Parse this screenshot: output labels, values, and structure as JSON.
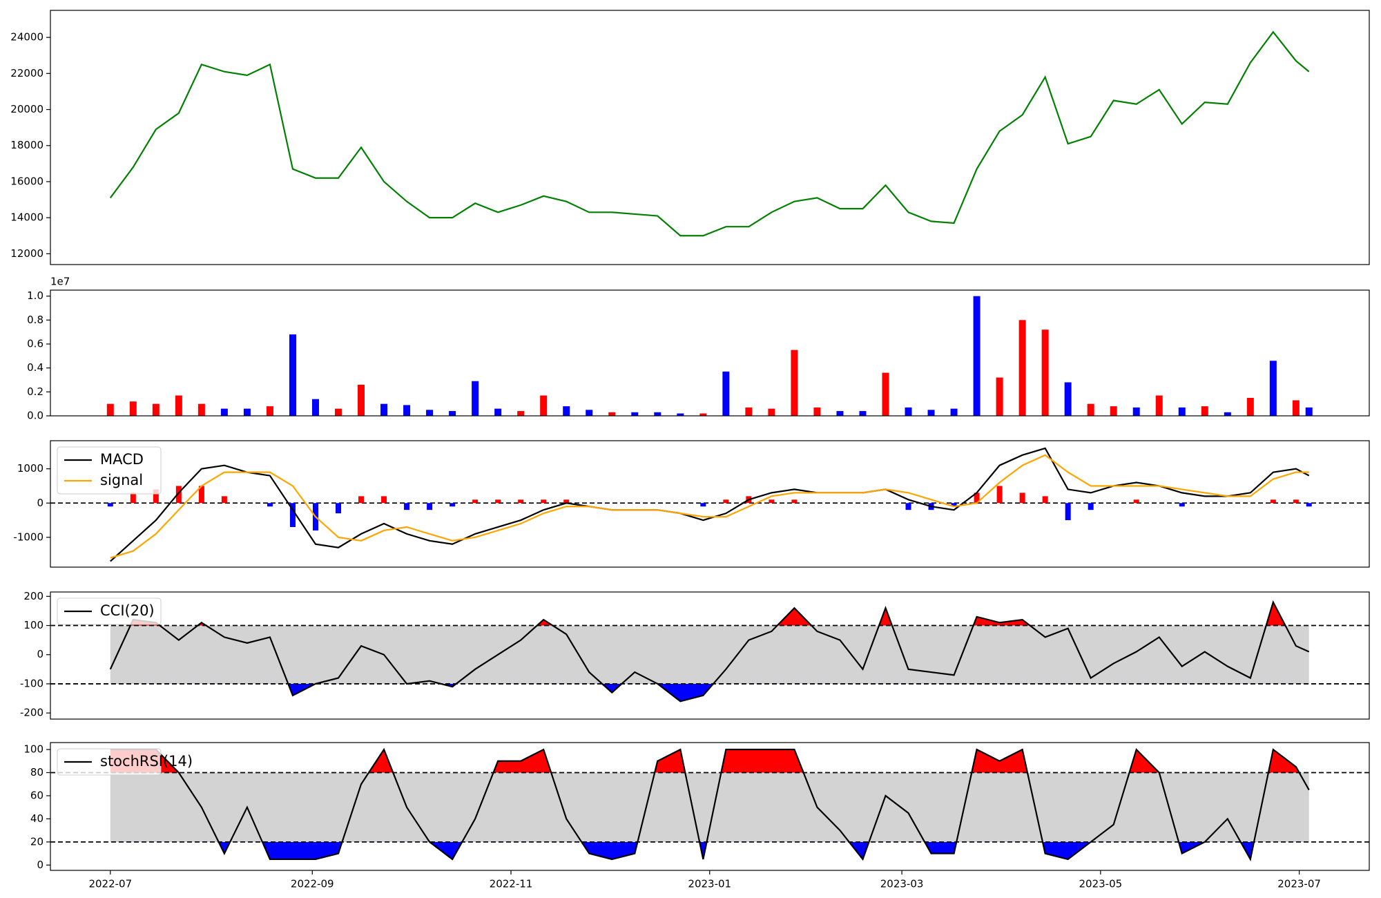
{
  "chart_data": [
    {
      "type": "line",
      "x": [
        0,
        7,
        14,
        21,
        28,
        35,
        42,
        49,
        56,
        63,
        70,
        77,
        84,
        91,
        98,
        105,
        112,
        119,
        126,
        133,
        140,
        147,
        154,
        161,
        168,
        175,
        182,
        189,
        196,
        203,
        210,
        217,
        224,
        231,
        238,
        245,
        252,
        259,
        266,
        273,
        280,
        287,
        294,
        301,
        308,
        315,
        322,
        329,
        336,
        343,
        350,
        357,
        364,
        368
      ],
      "xlim": [
        -18.4,
        386.5
      ],
      "ylim": [
        11400,
        25500
      ],
      "yticks": [
        12000,
        14000,
        16000,
        18000,
        20000,
        22000,
        24000
      ],
      "series": [
        {
          "color": "#008000",
          "values": [
            15100,
            16800,
            18900,
            19800,
            22500,
            22100,
            21900,
            22500,
            16700,
            16200,
            16200,
            17900,
            16000,
            14900,
            14000,
            14000,
            14800,
            14300,
            14700,
            15200,
            14900,
            14300,
            14300,
            14200,
            14100,
            13000,
            13000,
            13500,
            13500,
            14300,
            14900,
            15100,
            14500,
            14500,
            15800,
            14300,
            13800,
            13700,
            16700,
            18800,
            19700,
            21800,
            18100,
            18500,
            20500,
            20300,
            21100,
            19200,
            20400,
            20300,
            22600,
            24300,
            22700,
            22100
          ]
        }
      ]
    },
    {
      "type": "bar",
      "x": [
        0,
        7,
        14,
        21,
        28,
        35,
        42,
        49,
        56,
        63,
        70,
        77,
        84,
        91,
        98,
        105,
        112,
        119,
        126,
        133,
        140,
        147,
        154,
        161,
        168,
        175,
        182,
        189,
        196,
        203,
        210,
        217,
        224,
        231,
        238,
        245,
        252,
        259,
        266,
        273,
        280,
        287,
        294,
        301,
        308,
        315,
        322,
        329,
        336,
        343,
        350,
        357,
        364,
        368
      ],
      "xlim": [
        -18.4,
        386.5
      ],
      "ylim": [
        0,
        1.05
      ],
      "offset_label": "1e7",
      "yticks": [
        {
          "value": 0,
          "label": "0.0"
        },
        0.2,
        0.4,
        0.6,
        0.8,
        {
          "value": 1,
          "label": "1.0"
        }
      ],
      "values": [
        0.1,
        0.12,
        0.1,
        0.17,
        0.1,
        0.06,
        0.06,
        0.08,
        0.68,
        0.14,
        0.06,
        0.26,
        0.1,
        0.09,
        0.05,
        0.04,
        0.29,
        0.06,
        0.04,
        0.17,
        0.08,
        0.05,
        0.03,
        0.03,
        0.03,
        0.02,
        0.02,
        0.37,
        0.07,
        0.06,
        0.55,
        0.07,
        0.04,
        0.04,
        0.36,
        0.07,
        0.05,
        0.06,
        1.0,
        0.32,
        0.8,
        0.72,
        0.28,
        0.1,
        0.08,
        0.07,
        0.17,
        0.07,
        0.08,
        0.03,
        0.15,
        0.46,
        0.13,
        0.07
      ],
      "bar_colors": [
        "red",
        "red",
        "red",
        "red",
        "red",
        "blue",
        "blue",
        "red",
        "blue",
        "blue",
        "red",
        "red",
        "blue",
        "blue",
        "blue",
        "blue",
        "blue",
        "blue",
        "red",
        "red",
        "blue",
        "blue",
        "red",
        "blue",
        "blue",
        "blue",
        "red",
        "blue",
        "red",
        "red",
        "red",
        "red",
        "blue",
        "blue",
        "red",
        "blue",
        "blue",
        "blue",
        "blue",
        "red",
        "red",
        "red",
        "blue",
        "red",
        "red",
        "blue",
        "red",
        "blue",
        "red",
        "blue",
        "red",
        "blue",
        "red",
        "blue"
      ]
    },
    {
      "type": "line",
      "x": [
        0,
        7,
        14,
        21,
        28,
        35,
        42,
        49,
        56,
        63,
        70,
        77,
        84,
        91,
        98,
        105,
        112,
        119,
        126,
        133,
        140,
        147,
        154,
        161,
        168,
        175,
        182,
        189,
        196,
        203,
        210,
        217,
        224,
        231,
        238,
        245,
        252,
        259,
        266,
        273,
        280,
        287,
        294,
        301,
        308,
        315,
        322,
        329,
        336,
        343,
        350,
        357,
        364,
        368
      ],
      "xlim": [
        -18.4,
        386.5
      ],
      "ylim": [
        -1870,
        1820
      ],
      "yticks": [
        -1000,
        0,
        1000
      ],
      "hlines": [
        0
      ],
      "series": [
        {
          "name": "MACD",
          "color": "#000000",
          "values": [
            -1700,
            -1100,
            -500,
            300,
            1000,
            1100,
            900,
            800,
            -200,
            -1200,
            -1300,
            -900,
            -600,
            -900,
            -1100,
            -1200,
            -900,
            -700,
            -500,
            -200,
            0,
            -100,
            -200,
            -200,
            -200,
            -300,
            -500,
            -300,
            100,
            300,
            400,
            300,
            300,
            300,
            400,
            100,
            -100,
            -200,
            300,
            1100,
            1400,
            1600,
            400,
            300,
            500,
            600,
            500,
            300,
            200,
            200,
            300,
            900,
            1000,
            800
          ]
        },
        {
          "name": "signal",
          "color": "#ffa500",
          "values": [
            -1600,
            -1400,
            -900,
            -200,
            500,
            900,
            900,
            900,
            500,
            -400,
            -1000,
            -1100,
            -800,
            -700,
            -900,
            -1100,
            -1000,
            -800,
            -600,
            -300,
            -100,
            -100,
            -200,
            -200,
            -200,
            -300,
            -400,
            -400,
            -100,
            200,
            300,
            300,
            300,
            300,
            400,
            300,
            100,
            -100,
            0,
            600,
            1100,
            1400,
            900,
            500,
            500,
            500,
            500,
            400,
            300,
            200,
            200,
            700,
            900,
            900
          ]
        }
      ],
      "histogram": {
        "up_color": "red",
        "down_color": "blue",
        "values": [
          -100,
          300,
          400,
          500,
          500,
          200,
          0,
          -100,
          -700,
          -800,
          -300,
          200,
          200,
          -200,
          -200,
          -100,
          100,
          100,
          100,
          100,
          100,
          0,
          0,
          0,
          0,
          0,
          -100,
          100,
          200,
          100,
          100,
          0,
          0,
          0,
          0,
          -200,
          -200,
          -100,
          300,
          500,
          300,
          200,
          -500,
          -200,
          0,
          100,
          0,
          -100,
          0,
          0,
          0,
          100,
          100,
          -100
        ]
      },
      "legend": "upper left"
    },
    {
      "type": "line",
      "x": [
        0,
        7,
        14,
        21,
        28,
        35,
        42,
        49,
        56,
        63,
        70,
        77,
        84,
        91,
        98,
        105,
        112,
        119,
        126,
        133,
        140,
        147,
        154,
        161,
        168,
        175,
        182,
        189,
        196,
        203,
        210,
        217,
        224,
        231,
        238,
        245,
        252,
        259,
        266,
        273,
        280,
        287,
        294,
        301,
        308,
        315,
        322,
        329,
        336,
        343,
        350,
        357,
        364,
        368
      ],
      "xlim": [
        -18.4,
        386.5
      ],
      "ylim": [
        -221,
        215
      ],
      "yticks": [
        -200,
        -100,
        0,
        100,
        200
      ],
      "hlines": [
        -100,
        100
      ],
      "band_color": "#d3d3d3",
      "above_color": "red",
      "below_color": "blue",
      "series": [
        {
          "name": "CCI(20)",
          "color": "#000000",
          "values": [
            -50,
            120,
            110,
            50,
            110,
            60,
            40,
            60,
            -140,
            -100,
            -80,
            30,
            0,
            -100,
            -90,
            -110,
            -50,
            0,
            50,
            120,
            70,
            -60,
            -130,
            -60,
            -100,
            -160,
            -140,
            -50,
            50,
            80,
            160,
            80,
            50,
            -50,
            160,
            -50,
            -60,
            -70,
            130,
            110,
            120,
            60,
            90,
            -80,
            -30,
            10,
            60,
            -40,
            10,
            -40,
            -80,
            180,
            30,
            10
          ]
        }
      ],
      "legend": "upper left"
    },
    {
      "type": "line",
      "x": [
        0,
        7,
        14,
        21,
        28,
        35,
        42,
        49,
        56,
        63,
        70,
        77,
        84,
        91,
        98,
        105,
        112,
        119,
        126,
        133,
        140,
        147,
        154,
        161,
        168,
        175,
        182,
        189,
        196,
        203,
        210,
        217,
        224,
        231,
        238,
        245,
        252,
        259,
        266,
        273,
        280,
        287,
        294,
        301,
        308,
        315,
        322,
        329,
        336,
        343,
        350,
        357,
        364,
        368
      ],
      "xlim": [
        -18.4,
        386.5
      ],
      "ylim": [
        -4.6,
        106
      ],
      "yticks": [
        0,
        20,
        40,
        60,
        80,
        100
      ],
      "hlines": [
        20,
        80
      ],
      "band_color": "#d3d3d3",
      "above_color": "red",
      "below_color": "blue",
      "xticks": [
        {
          "value": 0,
          "label": "2022-07"
        },
        {
          "value": 62,
          "label": "2022-09"
        },
        {
          "value": 123,
          "label": "2022-11"
        },
        {
          "value": 184,
          "label": "2023-01"
        },
        {
          "value": 243,
          "label": "2023-03"
        },
        {
          "value": 304,
          "label": "2023-05"
        },
        {
          "value": 365,
          "label": "2023-07"
        }
      ],
      "series": [
        {
          "name": "stochRSI(14)",
          "color": "#000000",
          "values": [
            100,
            100,
            100,
            80,
            50,
            10,
            50,
            5,
            5,
            5,
            10,
            70,
            100,
            50,
            20,
            5,
            40,
            90,
            90,
            100,
            40,
            10,
            5,
            10,
            90,
            100,
            5,
            100,
            100,
            100,
            100,
            50,
            30,
            5,
            60,
            45,
            10,
            10,
            100,
            90,
            100,
            10,
            5,
            20,
            35,
            100,
            80,
            10,
            20,
            40,
            5,
            100,
            85,
            65
          ]
        }
      ],
      "legend": "upper left"
    }
  ]
}
